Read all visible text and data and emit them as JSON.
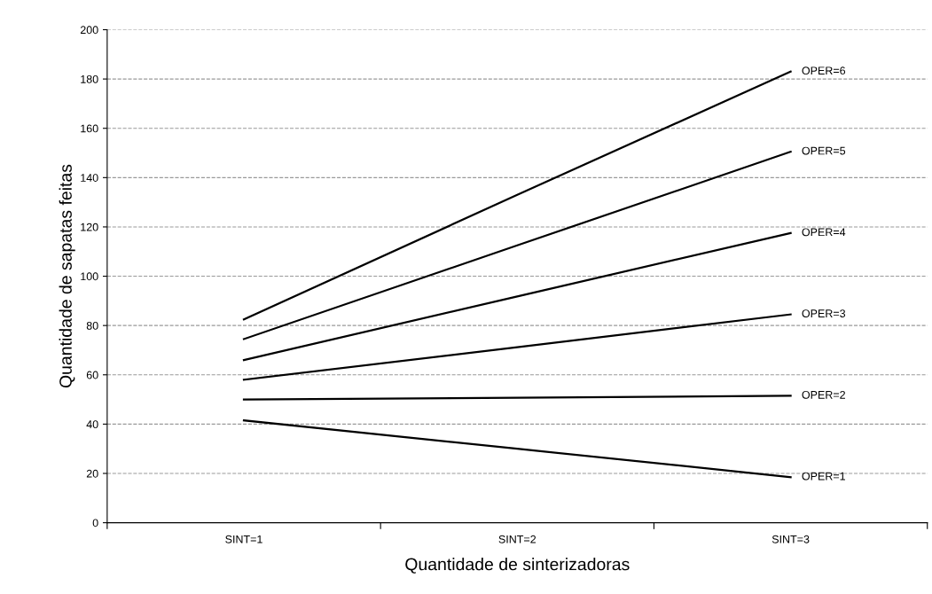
{
  "chart_data": {
    "type": "line",
    "xlabel": "Quantidade de sinterizadoras",
    "ylabel": "Quantidade de sapatas feitas",
    "categories": [
      "SINT=1",
      "SINT=2",
      "SINT=3"
    ],
    "series": [
      {
        "name": "OPER=1",
        "color": "#000000",
        "values": [
          41.5,
          30,
          18.5
        ]
      },
      {
        "name": "OPER=2",
        "color": "#000000",
        "values": [
          50,
          50.7,
          51.5
        ]
      },
      {
        "name": "OPER=3",
        "color": "#000000",
        "values": [
          58,
          71.2,
          84.5
        ]
      },
      {
        "name": "OPER=4",
        "color": "#000000",
        "values": [
          66,
          91.8,
          117.5
        ]
      },
      {
        "name": "OPER=5",
        "color": "#000000",
        "values": [
          74.5,
          112.5,
          150.5
        ]
      },
      {
        "name": "OPER=6",
        "color": "#000000",
        "values": [
          82.5,
          133,
          183
        ]
      }
    ],
    "ylim": [
      0,
      200
    ],
    "yticks": [
      0,
      20,
      40,
      60,
      80,
      100,
      120,
      140,
      160,
      180,
      200
    ],
    "grid": "y",
    "line_style": "solid",
    "marker": "none",
    "legend": false
  }
}
